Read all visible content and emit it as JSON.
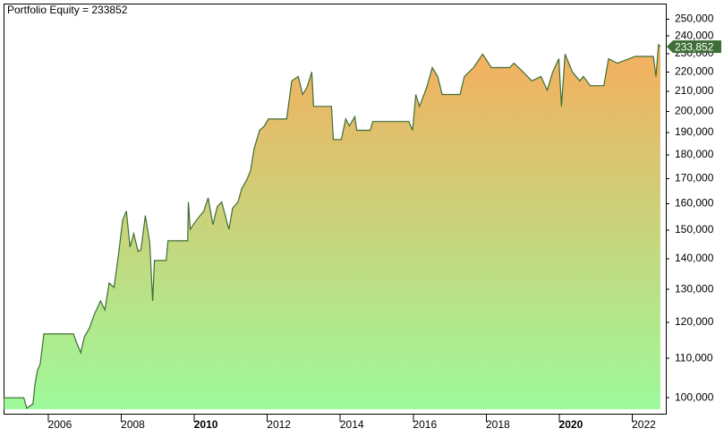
{
  "chart_data": {
    "type": "area",
    "title": "Portfolio Equity = 233852",
    "log_scale": true,
    "line_color": "#3d6e35",
    "fill_top_color": "#f5ae5e",
    "fill_bottom_color": "#9df99a",
    "last_value_label": "233,852",
    "bold_xticks": [
      2010,
      2020
    ],
    "xlim": [
      2004.8,
      2022.92
    ],
    "ylim": [
      96000,
      259000
    ],
    "xticks": [
      2006,
      2008,
      2010,
      2012,
      2014,
      2016,
      2018,
      2020,
      2022
    ],
    "yticks": [
      {
        "value": 100000,
        "label": "100,000"
      },
      {
        "value": 110000,
        "label": "110,000"
      },
      {
        "value": 120000,
        "label": "120,000"
      },
      {
        "value": 130000,
        "label": "130,000"
      },
      {
        "value": 140000,
        "label": "140,000"
      },
      {
        "value": 150000,
        "label": "150,000"
      },
      {
        "value": 160000,
        "label": "160,000"
      },
      {
        "value": 170000,
        "label": "170,000"
      },
      {
        "value": 180000,
        "label": "180,000"
      },
      {
        "value": 190000,
        "label": "190,000"
      },
      {
        "value": 200000,
        "label": "200,000"
      },
      {
        "value": 210000,
        "label": "210,000"
      },
      {
        "value": 220000,
        "label": "220,000"
      },
      {
        "value": 230000,
        "label": "230,000"
      },
      {
        "value": 240000,
        "label": "240,000"
      },
      {
        "value": 250000,
        "label": "250,000"
      }
    ],
    "x": [
      2004.79,
      2005.33,
      2005.41,
      2005.58,
      2005.63,
      2005.7,
      2005.78,
      2005.88,
      2006.69,
      2006.76,
      2006.89,
      2006.99,
      2007.13,
      2007.26,
      2007.43,
      2007.55,
      2007.67,
      2007.8,
      2007.92,
      2008.04,
      2008.14,
      2008.24,
      2008.34,
      2008.46,
      2008.54,
      2008.66,
      2008.78,
      2008.86,
      2008.91,
      2009.23,
      2009.28,
      2009.82,
      2009.84,
      2009.89,
      2010.06,
      2010.26,
      2010.38,
      2010.51,
      2010.63,
      2010.75,
      2010.95,
      2011.05,
      2011.2,
      2011.3,
      2011.44,
      2011.54,
      2011.64,
      2011.79,
      2011.91,
      2012.03,
      2012.53,
      2012.67,
      2012.85,
      2012.97,
      2013.09,
      2013.22,
      2013.27,
      2013.76,
      2013.81,
      2014.03,
      2014.15,
      2014.25,
      2014.4,
      2014.45,
      2014.82,
      2014.89,
      2015.88,
      2015.98,
      2016.07,
      2016.17,
      2016.37,
      2016.52,
      2016.67,
      2016.79,
      2017.28,
      2017.4,
      2017.65,
      2017.9,
      2018.14,
      2018.64,
      2018.76,
      2019.01,
      2019.25,
      2019.5,
      2019.67,
      2019.82,
      2019.99,
      2020.06,
      2020.16,
      2020.36,
      2020.56,
      2020.66,
      2020.85,
      2021.22,
      2021.35,
      2021.59,
      2022.08,
      2022.58,
      2022.65,
      2022.72,
      2022.77
    ],
    "values": [
      100000,
      100000,
      97500,
      98500,
      103000,
      106700,
      108600,
      116700,
      116700,
      114700,
      111500,
      115900,
      118400,
      122300,
      126400,
      123700,
      132000,
      130600,
      140900,
      153700,
      157100,
      144000,
      148800,
      142500,
      143000,
      155400,
      145600,
      126400,
      139400,
      139400,
      146200,
      146200,
      160600,
      150300,
      153700,
      157100,
      162200,
      152000,
      158800,
      160600,
      150300,
      158200,
      160600,
      165900,
      169500,
      173200,
      182800,
      191000,
      192800,
      196300,
      196300,
      215300,
      217600,
      208300,
      212000,
      220000,
      202400,
      202400,
      186800,
      186800,
      196300,
      193100,
      197400,
      191000,
      191000,
      195100,
      195100,
      191000,
      208300,
      202400,
      212000,
      222300,
      217600,
      208300,
      208300,
      217600,
      222300,
      229700,
      222300,
      222300,
      224700,
      220000,
      215300,
      217600,
      210500,
      220000,
      227200,
      202400,
      229700,
      220000,
      215300,
      217600,
      212800,
      212800,
      227200,
      224700,
      228400,
      228400,
      217600,
      235000,
      233852
    ]
  }
}
